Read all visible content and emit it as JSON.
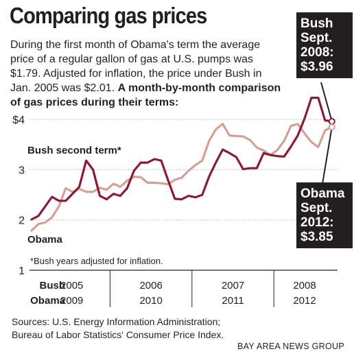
{
  "headline": "Comparing gas prices",
  "intro": {
    "text": "During the first month of Obama's term the average price of a regular gallon of gas at U.S. pumps was $1.79. Adjusted for inflation, the price under Bush in Jan. 2005 was $2.01.",
    "bold_text": "A month-by-month comparison of gas prices during their terms:"
  },
  "callouts": {
    "bush": [
      "Bush",
      "Sept.",
      "2008:",
      "$3.96"
    ],
    "obama": [
      "Obama",
      "Sept.",
      "2012:",
      "$3.85"
    ]
  },
  "colors": {
    "bush": "#8b1a3a",
    "obama": "#d4a096",
    "callout_bg": "#231f20"
  },
  "footnote": "*Bush years adjusted for inflation.",
  "sources": [
    "Sources: U.S. Energy Information Administration;",
    "Bureau of Labor Statistics' Consumer Price Index."
  ],
  "credit": "BAY AREA NEWS GROUP",
  "chart_data": {
    "type": "line",
    "x": [
      1,
      2,
      3,
      4,
      5,
      6,
      7,
      8,
      9,
      10,
      11,
      12,
      13,
      14,
      15,
      16,
      17,
      18,
      19,
      20,
      21,
      22,
      23,
      24,
      25,
      26,
      27,
      28,
      29,
      30,
      31,
      32,
      33,
      34,
      35,
      36,
      37,
      38,
      39,
      40,
      41,
      42,
      43,
      44,
      45
    ],
    "series": [
      {
        "name": "Bush second term*",
        "values": [
          2.01,
          2.08,
          2.27,
          2.46,
          2.38,
          2.38,
          2.52,
          2.66,
          3.18,
          3.0,
          2.48,
          2.41,
          2.52,
          2.48,
          2.63,
          2.98,
          3.14,
          3.14,
          3.21,
          3.18,
          2.79,
          2.42,
          2.41,
          2.48,
          2.45,
          2.5,
          2.86,
          3.14,
          3.4,
          3.33,
          3.25,
          3.01,
          3.03,
          3.03,
          3.33,
          3.29,
          3.27,
          3.26,
          3.46,
          3.68,
          4.02,
          4.43,
          4.43,
          3.98,
          3.96
        ]
      },
      {
        "name": "Obama",
        "values": [
          1.79,
          1.92,
          1.95,
          2.05,
          2.27,
          2.63,
          2.56,
          2.62,
          2.56,
          2.56,
          2.64,
          2.6,
          2.72,
          2.66,
          2.78,
          2.86,
          2.85,
          2.74,
          2.74,
          2.73,
          2.71,
          2.8,
          2.84,
          2.98,
          3.09,
          3.18,
          3.57,
          3.8,
          3.91,
          3.68,
          3.67,
          3.66,
          3.59,
          3.44,
          3.38,
          3.29,
          3.39,
          3.57,
          3.87,
          3.91,
          3.72,
          3.55,
          3.45,
          3.78,
          3.85
        ]
      }
    ],
    "yticks": [
      1,
      2,
      3,
      4
    ],
    "ytick_labels": [
      "1",
      "2",
      "3",
      "$4"
    ],
    "ylim": [
      1,
      4.6
    ],
    "row_labels": [
      "Bush",
      "Obama"
    ],
    "x_groups": [
      {
        "bush": "2005",
        "obama": "2009",
        "start": 1,
        "end": 12
      },
      {
        "bush": "2006",
        "obama": "2010",
        "start": 13,
        "end": 24
      },
      {
        "bush": "2007",
        "obama": "2011",
        "start": 25,
        "end": 36
      },
      {
        "bush": "2008",
        "obama": "2012",
        "start": 37,
        "end": 45
      }
    ]
  }
}
